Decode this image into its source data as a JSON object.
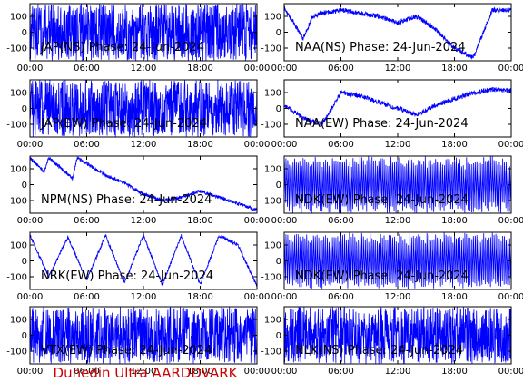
{
  "footer": {
    "credit": "Dunedin Ultra AARDDVARK"
  },
  "colors": {
    "trace": "#0000ff",
    "axes": "#000000",
    "background": "#ffffff",
    "credit": "#cc0000"
  },
  "chart_data": [
    {
      "type": "line",
      "title": "JAP(NS) Phase: 24-Jun-2024",
      "ylim": [
        -180,
        180
      ],
      "yticks": [
        100,
        0,
        -100
      ],
      "xticks": [
        "00:00",
        "06:00",
        "12:00",
        "18:00",
        "00:00"
      ],
      "series": [
        {
          "pattern": "wrapped-noise",
          "x": [
            0,
            1,
            2,
            3,
            4,
            6,
            8,
            12,
            16,
            20,
            22,
            23,
            24
          ],
          "values": [
            120,
            30,
            -120,
            150,
            -80,
            160,
            -160,
            170,
            -170,
            160,
            -150,
            60,
            20
          ]
        }
      ]
    },
    {
      "type": "line",
      "title": "NAA(NS) Phase: 24-Jun-2024",
      "ylim": [
        -180,
        180
      ],
      "yticks": [
        100,
        0,
        -100
      ],
      "xticks": [
        "00:00",
        "06:00",
        "12:00",
        "18:00",
        "00:00"
      ],
      "series": [
        {
          "pattern": "drift-with-wraps",
          "x": [
            0,
            1,
            2,
            3,
            4,
            6,
            8,
            10,
            12,
            14,
            16,
            18,
            20,
            22,
            24
          ],
          "values": [
            150,
            60,
            -40,
            100,
            120,
            140,
            120,
            100,
            60,
            100,
            20,
            -100,
            -160,
            140,
            140
          ]
        }
      ]
    },
    {
      "type": "line",
      "title": "JAP(EW) Phase: 24-Jun-2024",
      "ylim": [
        -180,
        180
      ],
      "yticks": [
        100,
        0,
        -100
      ],
      "xticks": [
        "00:00",
        "06:00",
        "12:00",
        "18:00",
        "00:00"
      ],
      "series": [
        {
          "pattern": "wrapped-noise",
          "x": [
            0,
            2,
            4,
            6,
            8,
            12,
            16,
            20,
            22,
            24
          ],
          "values": [
            100,
            -120,
            150,
            -160,
            170,
            -170,
            160,
            -150,
            120,
            -40
          ]
        }
      ]
    },
    {
      "type": "line",
      "title": "NAA(EW) Phase: 24-Jun-2024",
      "ylim": [
        -180,
        180
      ],
      "yticks": [
        100,
        0,
        -100
      ],
      "xticks": [
        "00:00",
        "06:00",
        "12:00",
        "18:00",
        "00:00"
      ],
      "series": [
        {
          "pattern": "drift-with-wraps",
          "x": [
            0,
            2,
            4,
            6,
            8,
            10,
            12,
            14,
            16,
            18,
            20,
            22,
            24
          ],
          "values": [
            20,
            -60,
            -100,
            100,
            80,
            40,
            0,
            -40,
            20,
            60,
            100,
            120,
            110
          ]
        }
      ]
    },
    {
      "type": "line",
      "title": "NPM(NS) Phase: 24-Jun-2024",
      "ylim": [
        -180,
        180
      ],
      "yticks": [
        100,
        0,
        -100
      ],
      "xticks": [
        "00:00",
        "06:00",
        "12:00",
        "18:00",
        "00:00"
      ],
      "series": [
        {
          "pattern": "sawtooth",
          "x": [
            0,
            1.5,
            2,
            4.5,
            5,
            8,
            10,
            12,
            14,
            16,
            18,
            20,
            22,
            24
          ],
          "values": [
            170,
            80,
            170,
            40,
            170,
            60,
            10,
            -60,
            -100,
            -80,
            -40,
            -80,
            -120,
            -160
          ]
        }
      ]
    },
    {
      "type": "line",
      "title": "NDK(EW) Phase: 24-Jun-2024",
      "ylim": [
        -180,
        180
      ],
      "yticks": [
        100,
        0,
        -100
      ],
      "xticks": [
        "00:00",
        "06:00",
        "12:00",
        "18:00",
        "00:00"
      ],
      "series": [
        {
          "pattern": "fast-sawtooth",
          "x": [
            0,
            6,
            12,
            18,
            24
          ],
          "values": [
            160,
            -160,
            160,
            -160,
            160
          ]
        }
      ]
    },
    {
      "type": "line",
      "title": "NRK(EW) Phase: 24-Jun-2024",
      "ylim": [
        -180,
        180
      ],
      "yticks": [
        100,
        0,
        -100
      ],
      "xticks": [
        "00:00",
        "06:00",
        "12:00",
        "18:00",
        "00:00"
      ],
      "series": [
        {
          "pattern": "sawtooth",
          "x": [
            0,
            2,
            4,
            6,
            8,
            10,
            12,
            14,
            16,
            18,
            20,
            22,
            24
          ],
          "values": [
            160,
            -100,
            150,
            -120,
            160,
            -140,
            160,
            -150,
            160,
            -150,
            160,
            100,
            -160
          ]
        }
      ]
    },
    {
      "type": "line",
      "title": "NDK(EW) Phase: 24-Jun-2024",
      "ylim": [
        -180,
        180
      ],
      "yticks": [
        100,
        0,
        -100
      ],
      "xticks": [
        "00:00",
        "06:00",
        "12:00",
        "18:00",
        "00:00"
      ],
      "series": [
        {
          "pattern": "fast-sawtooth",
          "x": [
            0,
            6,
            12,
            18,
            24
          ],
          "values": [
            160,
            -160,
            160,
            -160,
            160
          ]
        }
      ]
    },
    {
      "type": "line",
      "title": "VTX(EW) Phase: 24-Jun-2024",
      "ylim": [
        -180,
        180
      ],
      "yticks": [
        100,
        0,
        -100
      ],
      "xticks": [
        "00:00",
        "06:00",
        "12:00",
        "18:00",
        "00:00"
      ],
      "series": [
        {
          "pattern": "wrapped-noise",
          "x": [
            0,
            2,
            4,
            6,
            8,
            12,
            16,
            20,
            24
          ],
          "values": [
            80,
            -120,
            160,
            -150,
            170,
            -170,
            160,
            -160,
            120
          ]
        }
      ]
    },
    {
      "type": "line",
      "title": "NLK(NS) Phase: 24-Jun-2024",
      "ylim": [
        -180,
        180
      ],
      "yticks": [
        100,
        0,
        -100
      ],
      "xticks": [
        "00:00",
        "06:00",
        "12:00",
        "18:00",
        "00:00"
      ],
      "series": [
        {
          "pattern": "wrapped-noise",
          "x": [
            0,
            6,
            12,
            18,
            24
          ],
          "values": [
            170,
            -170,
            170,
            -170,
            170
          ]
        }
      ]
    }
  ]
}
